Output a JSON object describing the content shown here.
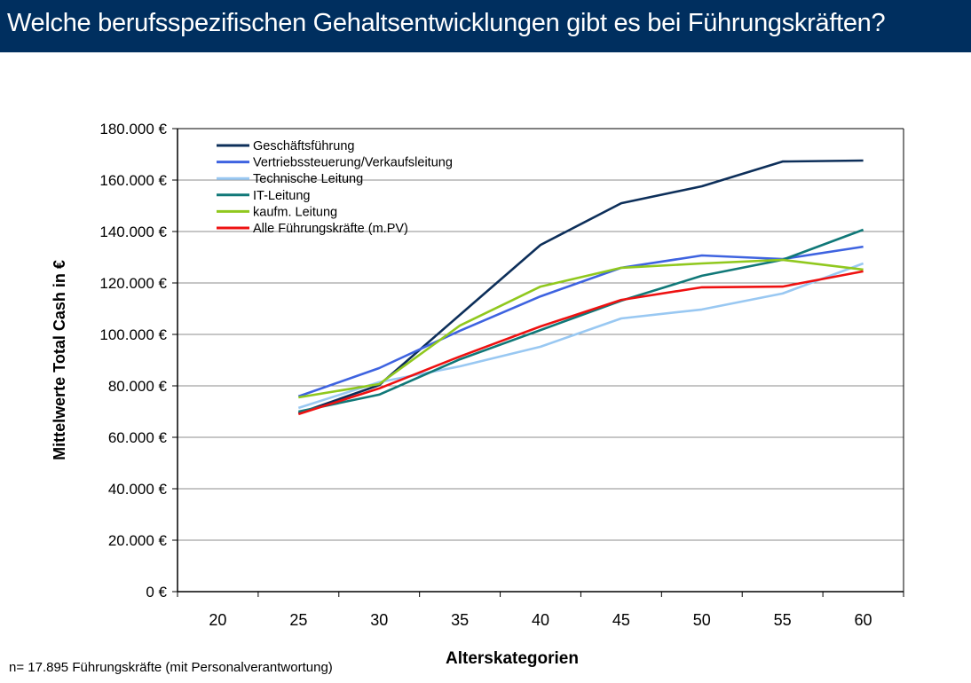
{
  "header": {
    "title": "Welche berufsspezifischen Gehaltsentwicklungen gibt es bei Führungskräften?"
  },
  "footnote": "n= 17.895 Führungskräfte (mit Personalverantwortung)",
  "chart_data": {
    "type": "line",
    "title": "Welche berufsspezifischen Gehaltsentwicklungen gibt es bei Führungskräften?",
    "xlabel": "Alterskategorien",
    "ylabel": "Mittelwerte Total Cash in €",
    "categories": [
      "20",
      "25",
      "30",
      "35",
      "40",
      "45",
      "50",
      "55",
      "60"
    ],
    "ylim": [
      0,
      180000
    ],
    "yticks": [
      0,
      20000,
      40000,
      60000,
      80000,
      100000,
      120000,
      140000,
      160000,
      180000
    ],
    "ytick_labels": [
      "0 €",
      "20.000 €",
      "40.000 €",
      "60.000 €",
      "80.000 €",
      "100.000 €",
      "120.000 €",
      "140.000 €",
      "160.000 €",
      "180.000 €"
    ],
    "grid": true,
    "legend_position": "top-left",
    "series": [
      {
        "name": "Geschäftsführung",
        "color": "#0d2f5a",
        "values": [
          null,
          69300,
          80300,
          107600,
          134800,
          151000,
          157600,
          167200,
          167600
        ]
      },
      {
        "name": "Vertriebssteuerung/Verkaufsleitung",
        "color": "#3e63e0",
        "values": [
          null,
          75900,
          86900,
          101400,
          114800,
          125900,
          130700,
          129300,
          134100
        ]
      },
      {
        "name": "Technische Leitung",
        "color": "#99c8f2",
        "values": [
          null,
          71400,
          81400,
          87600,
          95200,
          106200,
          109700,
          115900,
          127600
        ]
      },
      {
        "name": "IT-Leitung",
        "color": "#107878",
        "values": [
          null,
          70000,
          76600,
          90300,
          101700,
          113100,
          122800,
          129000,
          140700
        ]
      },
      {
        "name": "kaufm. Leitung",
        "color": "#90c81e",
        "values": [
          null,
          75500,
          80700,
          103400,
          118600,
          125900,
          127600,
          129000,
          125200
        ]
      },
      {
        "name": "Alle Führungskräfte (m.PV)",
        "color": "#ee1111",
        "values": [
          null,
          69000,
          79000,
          91400,
          103100,
          113400,
          118300,
          118600,
          124500
        ]
      }
    ]
  }
}
